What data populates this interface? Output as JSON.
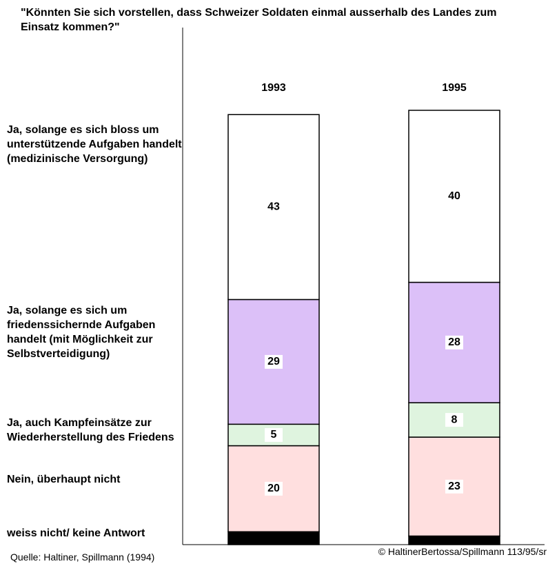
{
  "chart_data": {
    "type": "stacked_bar",
    "title": "\"Könnten Sie sich vorstellen, dass Schweizer Soldaten einmal ausserhalb des Landes zum Einsatz kommen?\"",
    "categories": [
      "1993",
      "1995"
    ],
    "series": [
      {
        "name": "weiss nicht/ keine Antwort",
        "color": "#000000",
        "values": [
          3,
          2
        ]
      },
      {
        "name": "Nein, überhaupt nicht",
        "color": "#ffdfdf",
        "values": [
          20,
          23
        ]
      },
      {
        "name": "Ja, auch Kampfeinsätze zur Wiederherstellung des Friedens",
        "color": "#dff4df",
        "values": [
          5,
          8
        ]
      },
      {
        "name": "Ja, solange es sich um friedenssichernde Aufgaben handelt (mit Möglichkeit zur Selbstverteidigung)",
        "color": "#dcc0f8",
        "values": [
          29,
          28
        ]
      },
      {
        "name": "Ja, solange es sich bloss um unterstützende Aufgaben handelt (medizinische Versorgung)",
        "color": "#ffffff",
        "values": [
          43,
          40
        ]
      }
    ],
    "source": "Quelle: Haltiner, Spillmann (1994)",
    "copyright": "© HaltinerBertossa/Spillmann 113/95/sr"
  }
}
